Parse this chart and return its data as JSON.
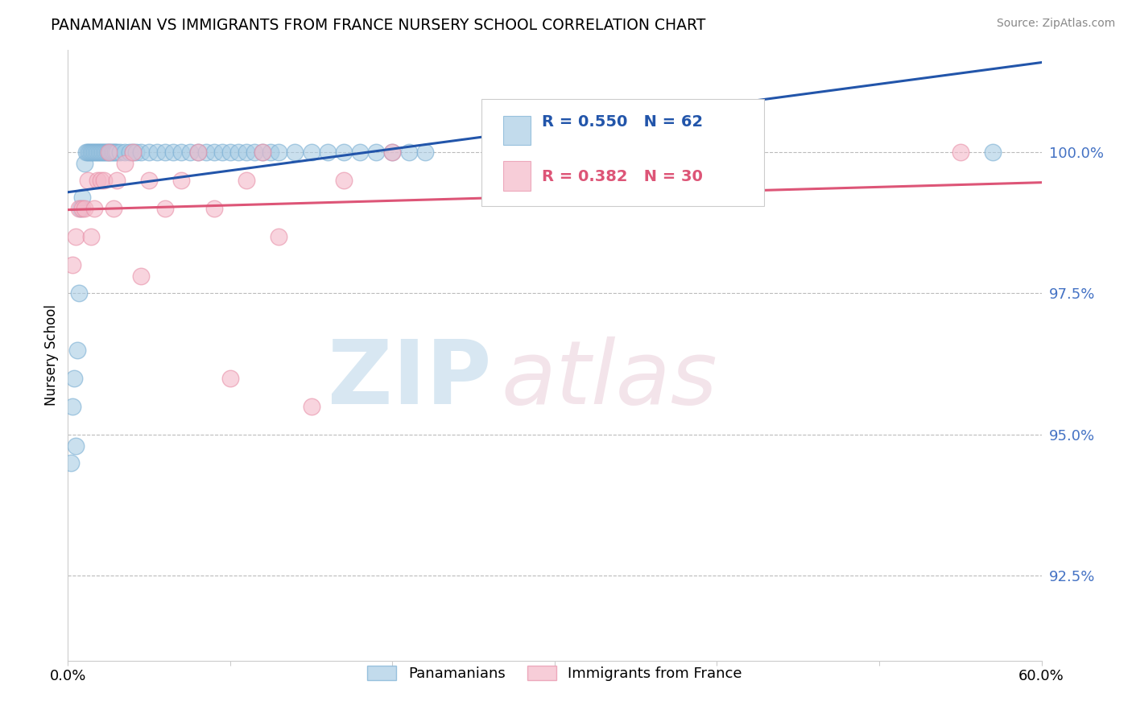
{
  "title": "PANAMANIAN VS IMMIGRANTS FROM FRANCE NURSERY SCHOOL CORRELATION CHART",
  "source": "Source: ZipAtlas.com",
  "ylabel": "Nursery School",
  "xlim": [
    0.0,
    60.0
  ],
  "ylim": [
    91.0,
    101.8
  ],
  "yticks": [
    92.5,
    95.0,
    97.5,
    100.0
  ],
  "ytick_labels": [
    "92.5%",
    "95.0%",
    "97.5%",
    "100.0%"
  ],
  "blue_label": "Panamanians",
  "pink_label": "Immigrants from France",
  "blue_R": 0.55,
  "blue_N": 62,
  "pink_R": 0.382,
  "pink_N": 30,
  "blue_color": "#a8cce4",
  "pink_color": "#f4b8c8",
  "blue_edge_color": "#7aafd4",
  "pink_edge_color": "#e890a8",
  "blue_line_color": "#2255aa",
  "pink_line_color": "#dd5577",
  "ytick_color": "#4472c4",
  "grid_color": "#bbbbbb",
  "spine_color": "#cccccc",
  "blue_x": [
    0.2,
    0.3,
    0.4,
    0.5,
    0.6,
    0.7,
    0.8,
    0.9,
    1.0,
    1.1,
    1.2,
    1.3,
    1.4,
    1.5,
    1.6,
    1.7,
    1.8,
    1.9,
    2.0,
    2.1,
    2.2,
    2.3,
    2.4,
    2.5,
    2.6,
    2.7,
    2.8,
    2.9,
    3.0,
    3.2,
    3.5,
    3.8,
    4.0,
    4.2,
    4.5,
    5.0,
    5.5,
    6.0,
    6.5,
    7.0,
    7.5,
    8.0,
    8.5,
    9.0,
    9.5,
    10.0,
    10.5,
    11.0,
    11.5,
    12.0,
    12.5,
    13.0,
    14.0,
    15.0,
    16.0,
    17.0,
    18.0,
    19.0,
    20.0,
    21.0,
    22.0,
    57.0
  ],
  "blue_y": [
    94.5,
    95.5,
    96.0,
    94.8,
    96.5,
    97.5,
    99.0,
    99.2,
    99.8,
    100.0,
    100.0,
    100.0,
    100.0,
    100.0,
    100.0,
    100.0,
    100.0,
    100.0,
    100.0,
    100.0,
    100.0,
    100.0,
    100.0,
    100.0,
    100.0,
    100.0,
    100.0,
    100.0,
    100.0,
    100.0,
    100.0,
    100.0,
    100.0,
    100.0,
    100.0,
    100.0,
    100.0,
    100.0,
    100.0,
    100.0,
    100.0,
    100.0,
    100.0,
    100.0,
    100.0,
    100.0,
    100.0,
    100.0,
    100.0,
    100.0,
    100.0,
    100.0,
    100.0,
    100.0,
    100.0,
    100.0,
    100.0,
    100.0,
    100.0,
    100.0,
    100.0,
    100.0
  ],
  "pink_x": [
    0.3,
    0.5,
    0.7,
    0.9,
    1.0,
    1.2,
    1.4,
    1.6,
    1.8,
    2.0,
    2.2,
    2.5,
    2.8,
    3.0,
    3.5,
    4.0,
    4.5,
    5.0,
    6.0,
    7.0,
    8.0,
    9.0,
    10.0,
    11.0,
    12.0,
    13.0,
    15.0,
    17.0,
    20.0,
    55.0
  ],
  "pink_y": [
    98.0,
    98.5,
    99.0,
    99.0,
    99.0,
    99.5,
    98.5,
    99.0,
    99.5,
    99.5,
    99.5,
    100.0,
    99.0,
    99.5,
    99.8,
    100.0,
    97.8,
    99.5,
    99.0,
    99.5,
    100.0,
    99.0,
    96.0,
    99.5,
    100.0,
    98.5,
    95.5,
    99.5,
    100.0,
    100.0
  ]
}
